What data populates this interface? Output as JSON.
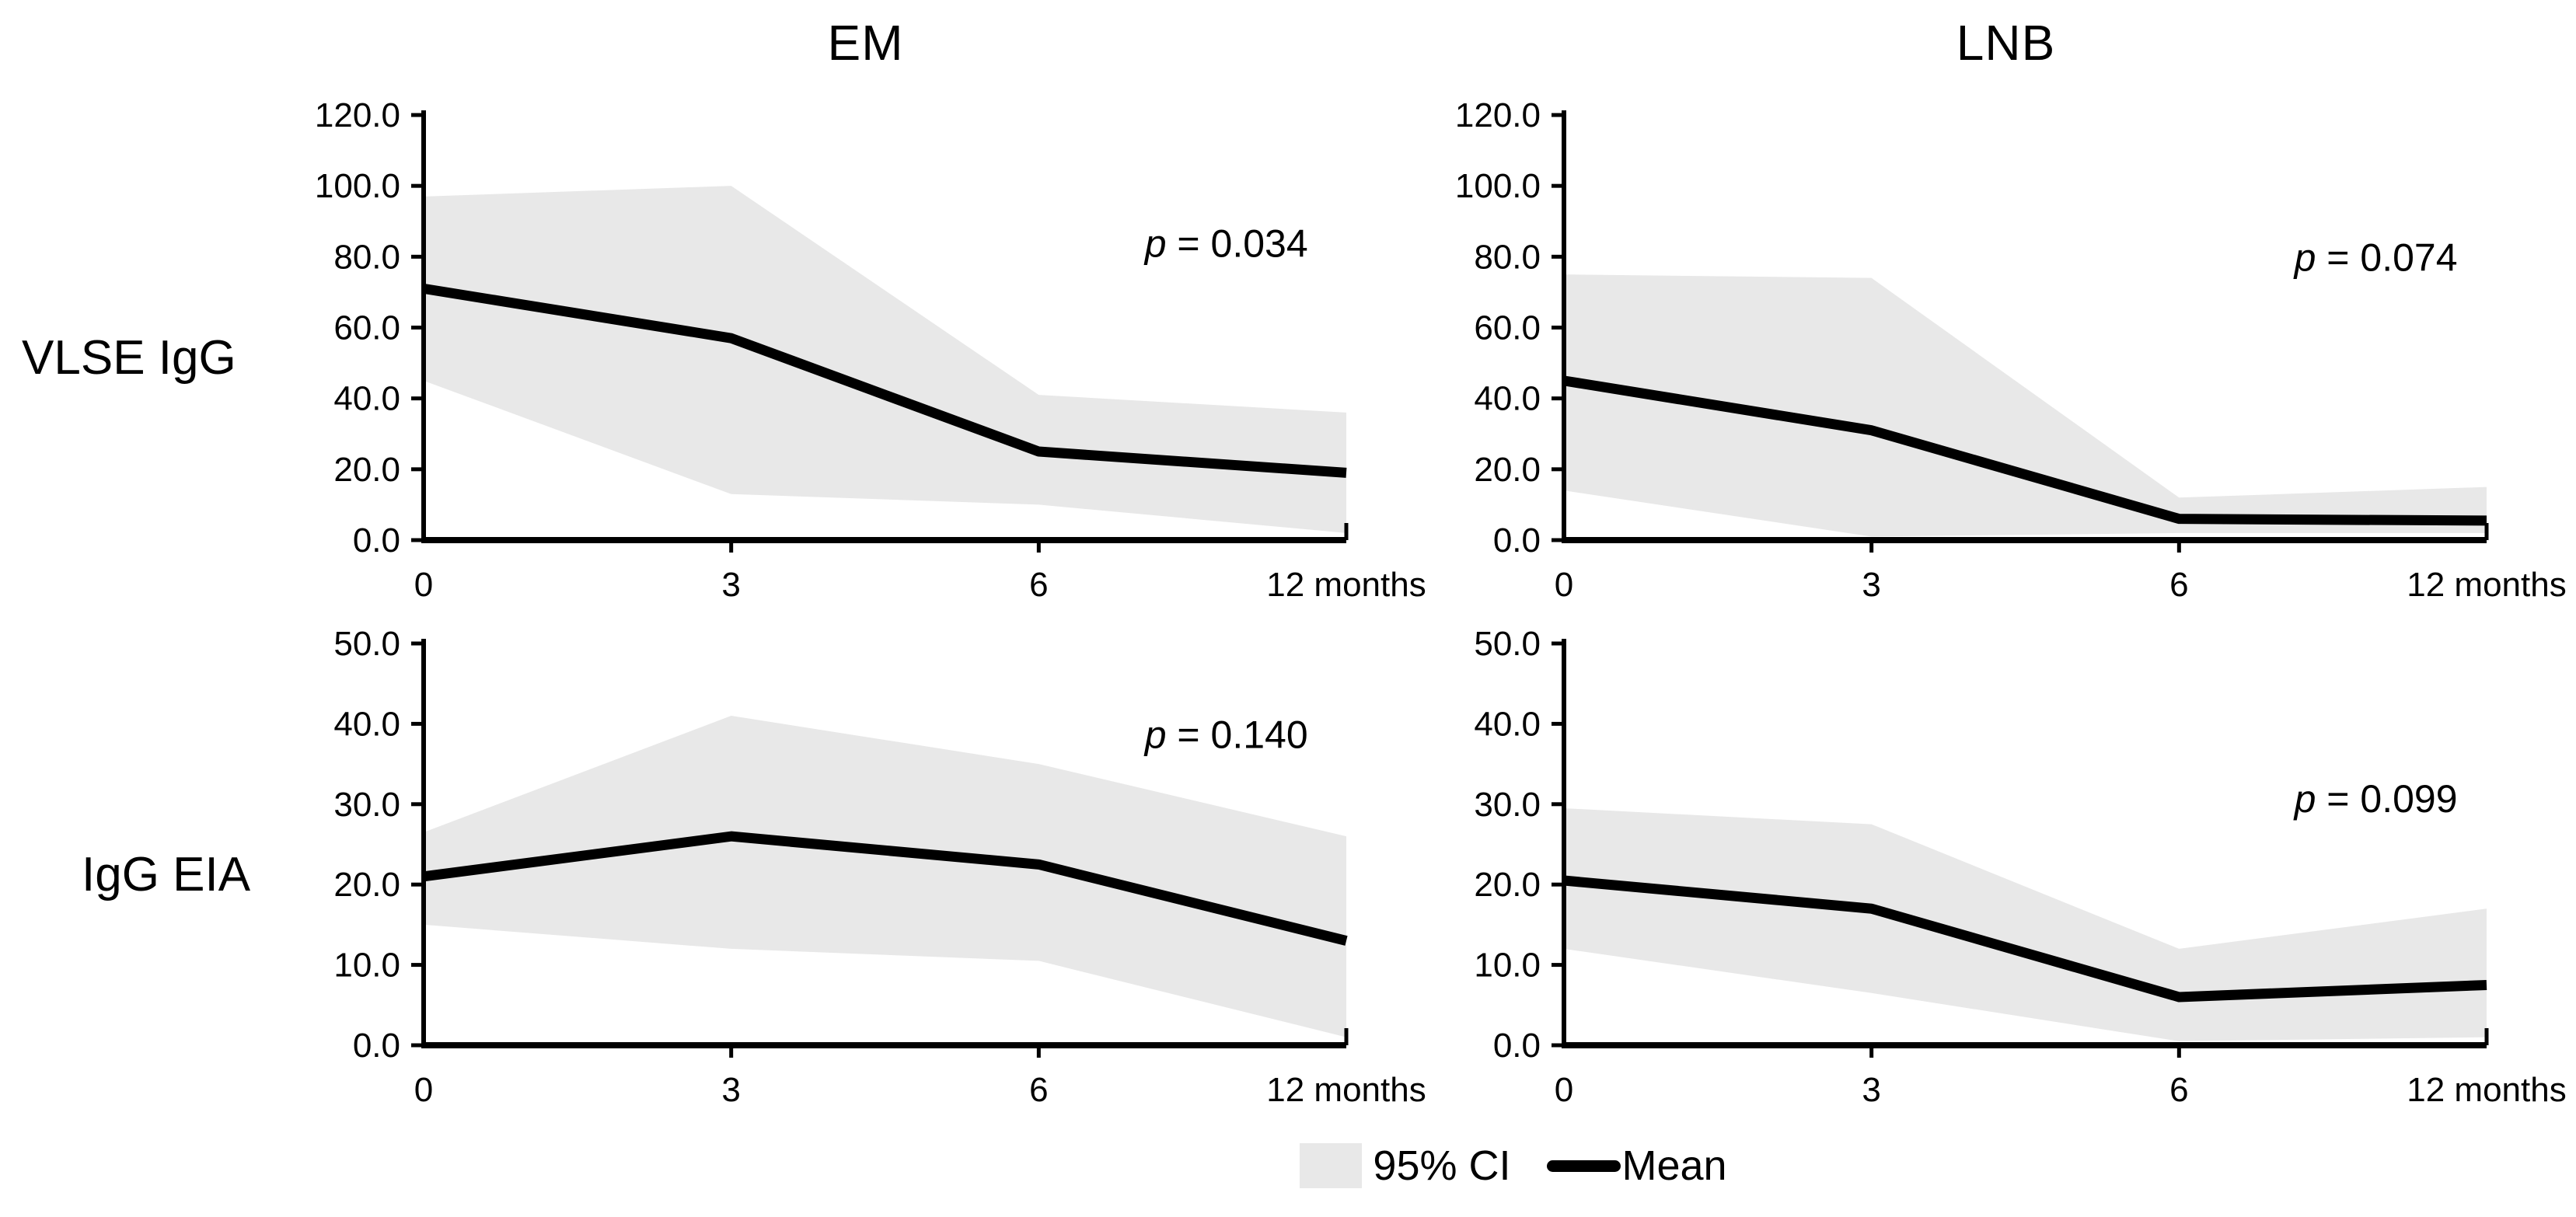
{
  "figure": {
    "column_titles": {
      "em": "EM",
      "lnb": "LNB"
    },
    "row_labels": {
      "vlse": "VLSE IgG",
      "eia": "IgG EIA"
    }
  },
  "legend": {
    "ci_label": "95% CI",
    "mean_label": "Mean"
  },
  "colors": {
    "ci_fill": "#e8e8e8",
    "mean_line": "#000000",
    "axis": "#000000",
    "text": "#000000"
  },
  "chart_data": [
    {
      "id": "vlse-em",
      "type": "area",
      "row": "VLSE IgG",
      "column": "EM",
      "x": [
        0,
        3,
        6,
        12
      ],
      "x_tick_labels": [
        "0",
        "3",
        "6",
        "12 months"
      ],
      "ylim": [
        0,
        120
      ],
      "ystep": 20,
      "y_tick_labels": [
        "0.0",
        "20.0",
        "40.0",
        "60.0",
        "80.0",
        "100.0",
        "120.0"
      ],
      "series": [
        {
          "name": "Mean",
          "values": [
            71,
            57,
            25,
            19
          ]
        }
      ],
      "ci_upper": [
        97,
        100,
        41,
        36
      ],
      "ci_lower": [
        45,
        13,
        10,
        2
      ],
      "p_label": "p = 0.034",
      "p_italic_part": "p",
      "p_rest_part": " = 0.034",
      "p_pos": {
        "x_frac": 0.87,
        "y_value": 80
      },
      "grid": false,
      "legend_position": "bottom-center-shared"
    },
    {
      "id": "vlse-lnb",
      "type": "area",
      "row": "VLSE IgG",
      "column": "LNB",
      "x": [
        0,
        3,
        6,
        12
      ],
      "x_tick_labels": [
        "0",
        "3",
        "6",
        "12 months"
      ],
      "ylim": [
        0,
        120
      ],
      "ystep": 20,
      "y_tick_labels": [
        "0.0",
        "20.0",
        "40.0",
        "60.0",
        "80.0",
        "100.0",
        "120.0"
      ],
      "series": [
        {
          "name": "Mean",
          "values": [
            45,
            31,
            6,
            5.5
          ]
        }
      ],
      "ci_upper": [
        75,
        74,
        12,
        15
      ],
      "ci_lower": [
        14,
        1,
        2,
        2
      ],
      "p_label": "p = 0.074",
      "p_italic_part": "p",
      "p_rest_part": " = 0.074",
      "p_pos": {
        "x_frac": 0.88,
        "y_value": 76
      },
      "grid": false,
      "legend_position": "bottom-center-shared"
    },
    {
      "id": "eia-em",
      "type": "area",
      "row": "IgG EIA",
      "column": "EM",
      "x": [
        0,
        3,
        6,
        12
      ],
      "x_tick_labels": [
        "0",
        "3",
        "6",
        "12 months"
      ],
      "ylim": [
        0,
        50
      ],
      "ystep": 10,
      "y_tick_labels": [
        "0.0",
        "10.0",
        "20.0",
        "30.0",
        "40.0",
        "50.0"
      ],
      "series": [
        {
          "name": "Mean",
          "values": [
            21,
            26,
            22.5,
            13
          ]
        }
      ],
      "ci_upper": [
        26.5,
        41,
        35,
        26
      ],
      "ci_lower": [
        15,
        12,
        10.5,
        1
      ],
      "p_label": "p = 0.140",
      "p_italic_part": "p",
      "p_rest_part": " = 0.140",
      "p_pos": {
        "x_frac": 0.87,
        "y_value": 37
      },
      "grid": false,
      "legend_position": "bottom-center-shared"
    },
    {
      "id": "eia-lnb",
      "type": "area",
      "row": "IgG EIA",
      "column": "LNB",
      "x": [
        0,
        3,
        6,
        12
      ],
      "x_tick_labels": [
        "0",
        "3",
        "6",
        "12 months"
      ],
      "ylim": [
        0,
        50
      ],
      "ystep": 10,
      "y_tick_labels": [
        "0.0",
        "10.0",
        "20.0",
        "30.0",
        "40.0",
        "50.0"
      ],
      "series": [
        {
          "name": "Mean",
          "values": [
            20.5,
            17,
            6,
            7.5
          ]
        }
      ],
      "ci_upper": [
        29.5,
        27.5,
        12,
        17
      ],
      "ci_lower": [
        12,
        6.5,
        0.5,
        1
      ],
      "p_label": "p = 0.099",
      "p_italic_part": "p",
      "p_rest_part": " = 0.099",
      "p_pos": {
        "x_frac": 0.88,
        "y_value": 29
      },
      "grid": false,
      "legend_position": "bottom-center-shared"
    }
  ]
}
